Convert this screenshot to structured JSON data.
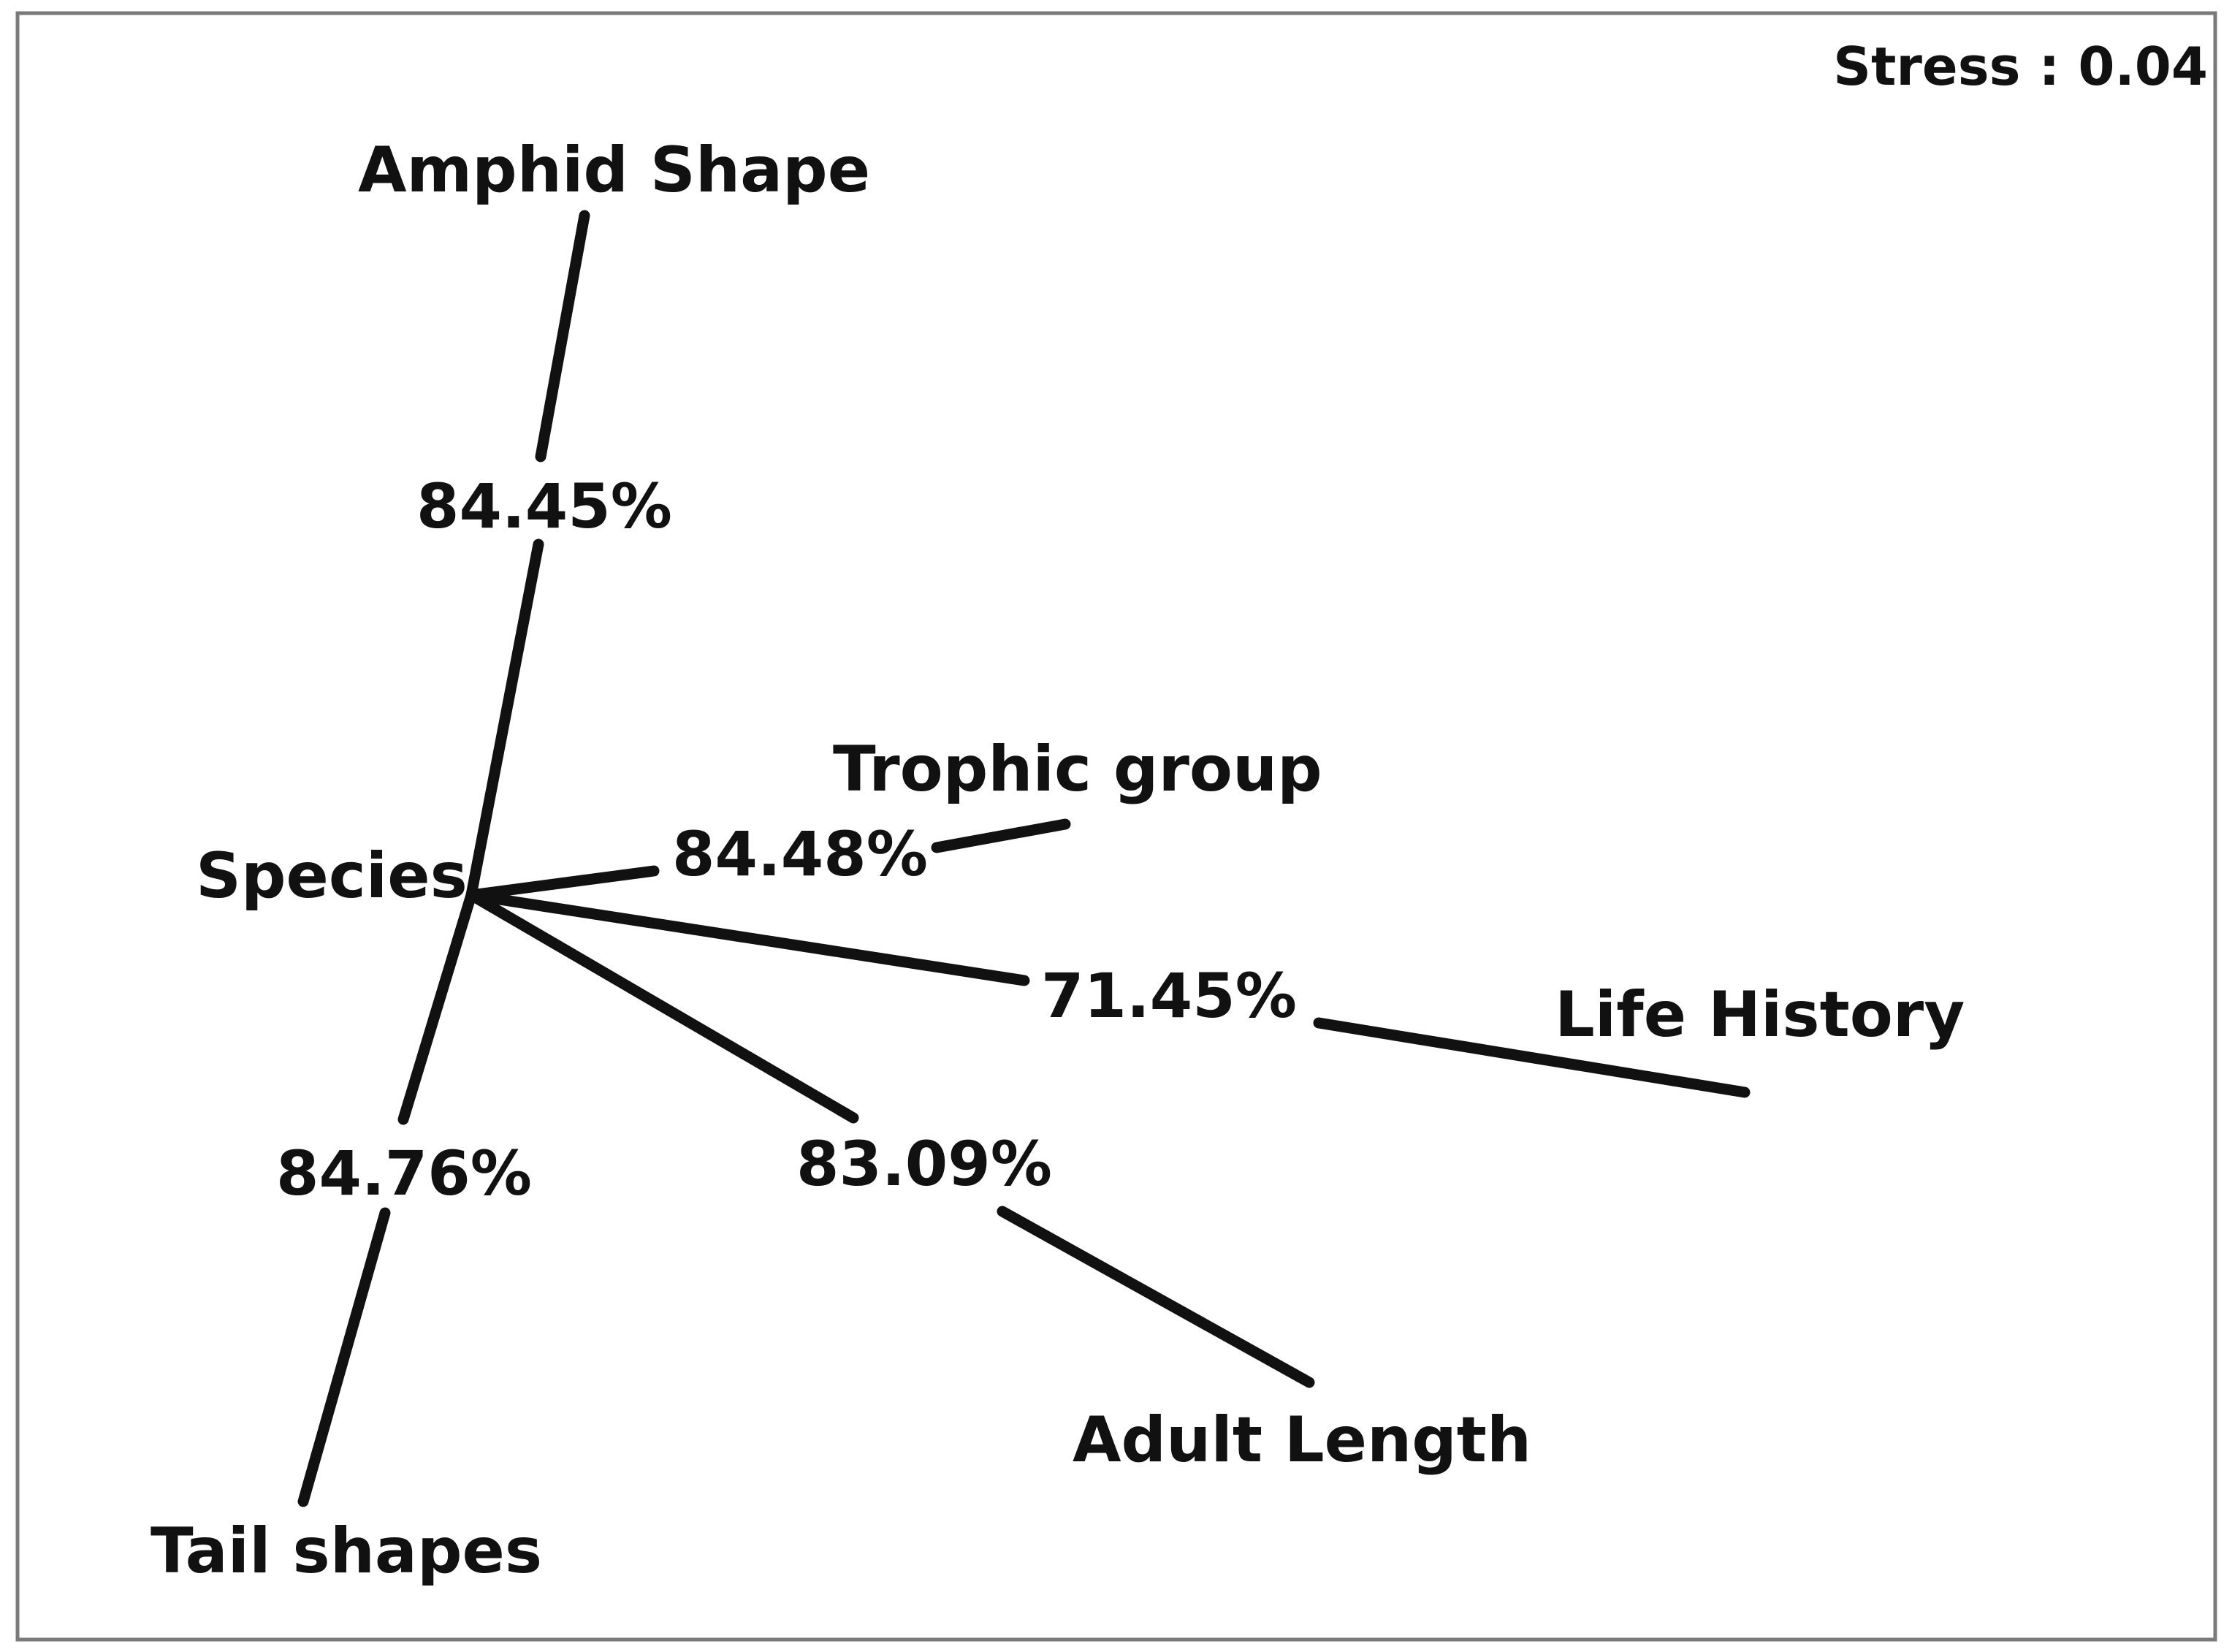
{
  "stress_label": "Stress : 0.04",
  "center": {
    "label": "Species"
  },
  "branches": {
    "amphid": {
      "label": "Amphid Shape",
      "value": "84.45%"
    },
    "trophic": {
      "label": "Trophic group",
      "value": "84.48%"
    },
    "life": {
      "label": "Life History",
      "value": "71.45%"
    },
    "adult": {
      "label": "Adult Length",
      "value": "83.09%"
    },
    "tail": {
      "label": "Tail shapes",
      "value": "84.76%"
    }
  },
  "colors": {
    "line": "#111111",
    "frame": "#7a7a7a",
    "background": "#ffffff"
  }
}
